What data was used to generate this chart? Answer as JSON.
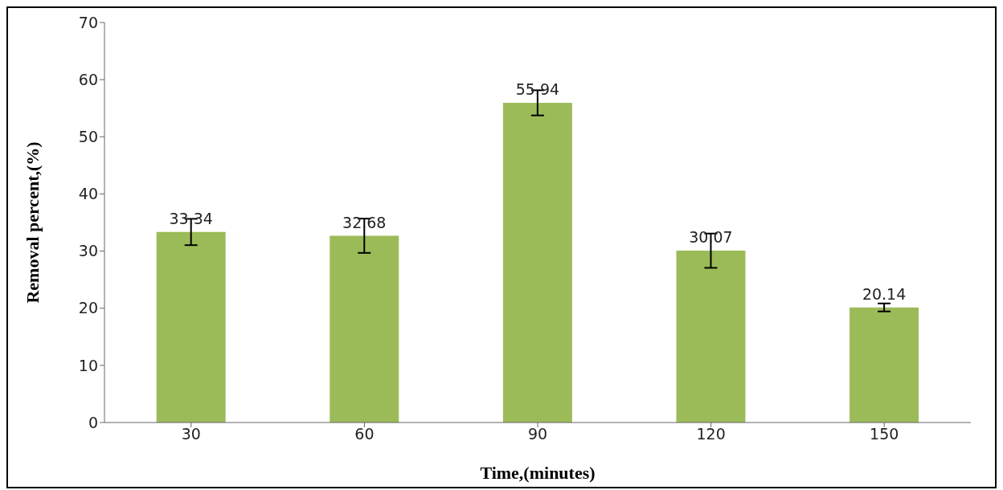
{
  "chart_data": {
    "type": "bar",
    "xlabel": "Time,(minutes)",
    "ylabel": "Removal percent,(%)",
    "categories": [
      "30",
      "60",
      "90",
      "120",
      "150"
    ],
    "values": [
      33.34,
      32.68,
      55.94,
      30.07,
      20.14
    ],
    "errors": [
      2.3,
      3.0,
      2.2,
      3.0,
      0.7
    ],
    "color": "#9bbb59",
    "data_labels": true,
    "ylim": [
      0,
      70
    ],
    "yticks": [
      0,
      10,
      20,
      30,
      40,
      50,
      60,
      70
    ],
    "grid": false,
    "legend": false
  }
}
